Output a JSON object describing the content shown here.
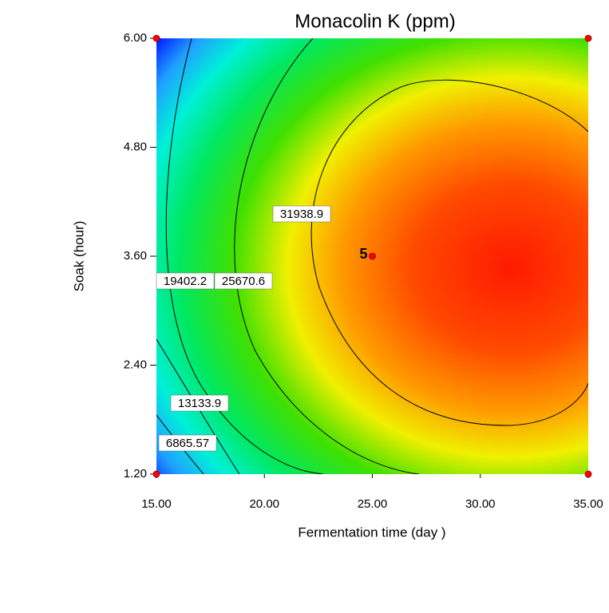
{
  "chart_data": {
    "type": "contour",
    "title": "Monacolin K (ppm)",
    "x_label": "Fermentation time (day )",
    "y_label": "Soak (hour)",
    "xlim": [
      15,
      35
    ],
    "ylim": [
      1.2,
      6
    ],
    "xticks": [
      {
        "value": 15,
        "label": "15.00"
      },
      {
        "value": 20,
        "label": "20.00"
      },
      {
        "value": 25,
        "label": "25.00"
      },
      {
        "value": 30,
        "label": "30.00"
      },
      {
        "value": 35,
        "label": "35.00"
      }
    ],
    "yticks": [
      {
        "value": 1.2,
        "label": "1.20"
      },
      {
        "value": 2.4,
        "label": "2.40"
      },
      {
        "value": 3.6,
        "label": "3.60"
      },
      {
        "value": 4.8,
        "label": "4.80"
      },
      {
        "value": 6,
        "label": "6.00"
      }
    ],
    "levels": [
      6865.57,
      13133.9,
      19402.2,
      25670.6,
      31938.9
    ],
    "design_points": {
      "x": [
        15,
        15,
        35,
        35,
        25
      ],
      "y": [
        1.2,
        6,
        6,
        1.2,
        3.6
      ],
      "color": "#ff0000"
    },
    "annotations": [
      {
        "text": "5",
        "x": 25,
        "y": 3.6
      }
    ]
  }
}
